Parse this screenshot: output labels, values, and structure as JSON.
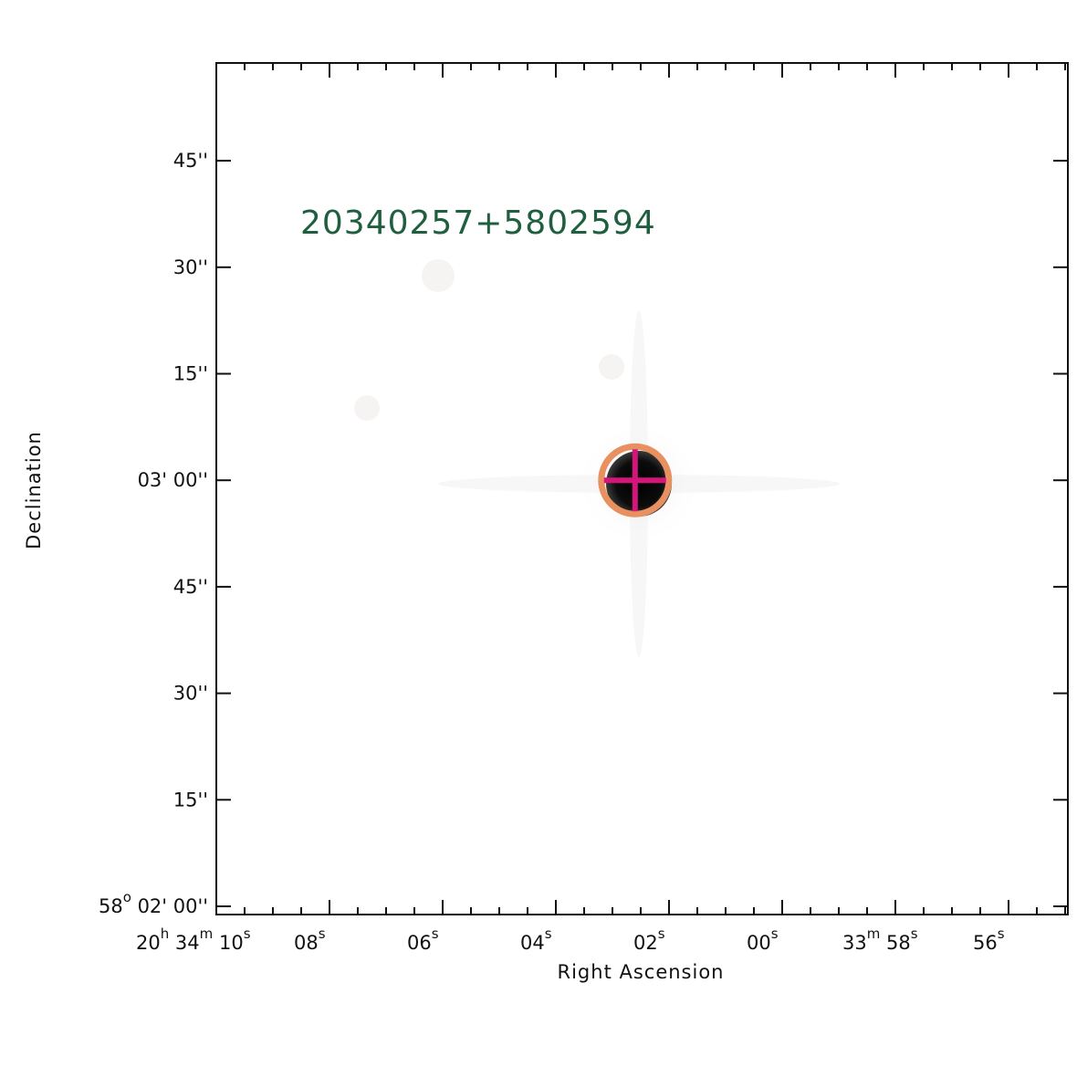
{
  "chart_data": {
    "type": "image",
    "title": "20340257+5802594",
    "xlabel": "Right Ascension",
    "ylabel": "Declination",
    "colors": {
      "label": "#1f5f3f",
      "circle": "#e89060",
      "cross": "#d6157a",
      "frame": "#111111"
    },
    "x_ticks": [
      {
        "h": "20",
        "m": "34",
        "s": "10"
      },
      {
        "s": "08"
      },
      {
        "s": "06"
      },
      {
        "s": "04"
      },
      {
        "s": "02"
      },
      {
        "s": "00"
      },
      {
        "m": "33",
        "s": "58"
      },
      {
        "s": "56"
      }
    ],
    "y_ticks": [
      {
        "deg": "58",
        "arcmin": "02'",
        "arcsec": "00''"
      },
      {
        "arcsec": "15''"
      },
      {
        "arcsec": "30''"
      },
      {
        "arcsec": "45''"
      },
      {
        "arcmin": "03'",
        "arcsec": "00''"
      },
      {
        "arcsec": "15''"
      },
      {
        "arcsec": "30''"
      },
      {
        "arcsec": "45''"
      }
    ],
    "source": {
      "ra_offset_s": 2.6,
      "dec_offset_arcsec": 0
    }
  }
}
